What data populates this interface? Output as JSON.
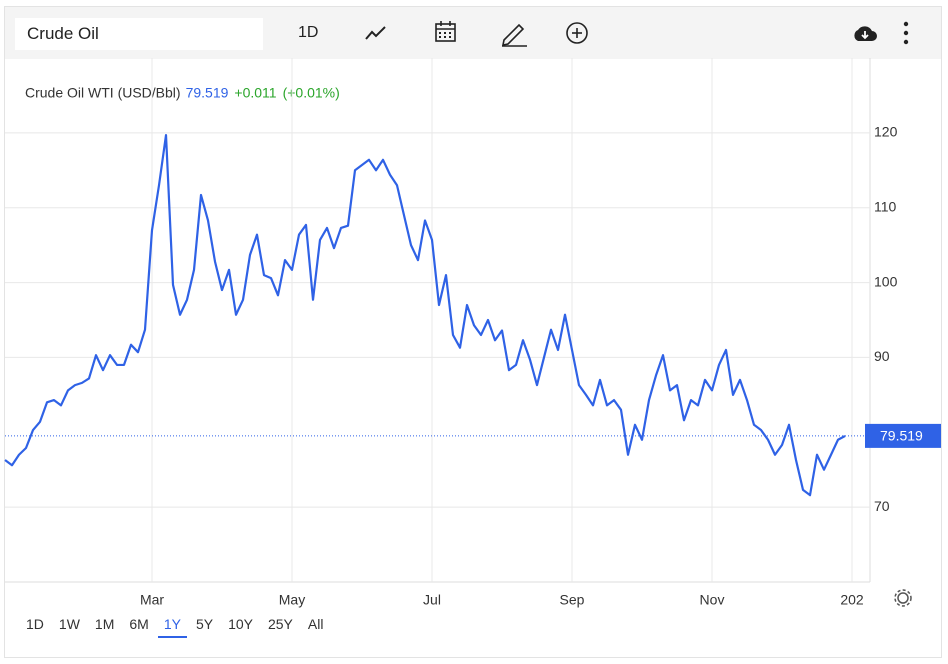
{
  "toolbar": {
    "symbol": "Crude Oil",
    "interval": "1D"
  },
  "chart_data": {
    "type": "line",
    "change": "+0.011",
    "change_percent": "(+0.01%)",
    "last_price": 79.519,
    "categories": [
      null,
      null,
      null,
      null,
      null,
      null,
      null,
      null,
      null,
      null,
      null,
      null,
      null,
      null,
      null,
      null,
      null,
      null,
      null,
      null,
      null,
      "Mar",
      null,
      null,
      null,
      null,
      null,
      null,
      null,
      null,
      null,
      null,
      null,
      null,
      null,
      null,
      null,
      null,
      null,
      null,
      null,
      "May",
      null,
      null,
      null,
      null,
      null,
      null,
      null,
      null,
      null,
      null,
      null,
      null,
      null,
      null,
      null,
      null,
      null,
      null,
      null,
      "Jul",
      null,
      null,
      null,
      null,
      null,
      null,
      null,
      null,
      null,
      null,
      null,
      null,
      null,
      null,
      null,
      null,
      null,
      null,
      null,
      "Sep",
      null,
      null,
      null,
      null,
      null,
      null,
      null,
      null,
      null,
      null,
      null,
      null,
      null,
      null,
      null,
      null,
      null,
      null,
      null,
      "Nov",
      null,
      null,
      null,
      null,
      null,
      null,
      null,
      null,
      null,
      null,
      null,
      null,
      null,
      null,
      null,
      null,
      null,
      null,
      null,
      "202"
    ],
    "series": [
      {
        "name": "Crude Oil WTI (USD/Bbl)",
        "color": "#2f62e6",
        "values": [
          76.3,
          75.6,
          77,
          77.9,
          80.3,
          81.4,
          84,
          84.3,
          83.6,
          85.6,
          86.3,
          86.6,
          87.2,
          90.3,
          88.3,
          90.3,
          89,
          89,
          91.7,
          90.7,
          93.7,
          107,
          113,
          119.7,
          99.7,
          95.7,
          97.7,
          101.7,
          111.7,
          108.3,
          102.8,
          99,
          101.7,
          95.7,
          97.7,
          103.7,
          106.4,
          101,
          100.6,
          98.3,
          103,
          101.7,
          106.4,
          107.7,
          97.7,
          105.7,
          107.3,
          104.6,
          107.3,
          107.6,
          115,
          115.7,
          116.4,
          115,
          116.4,
          114.4,
          113,
          109,
          105,
          103,
          108.3,
          105.7,
          97,
          101,
          93,
          91.3,
          97,
          94.3,
          93,
          95,
          92.3,
          93.6,
          88.3,
          89,
          92.3,
          89.7,
          86.3,
          90,
          93.7,
          91,
          95.7,
          91,
          86.3,
          85,
          83.6,
          87,
          83.6,
          84.3,
          83,
          77,
          81,
          79,
          84.3,
          87.6,
          90.3,
          85.6,
          86.3,
          81.6,
          84.3,
          83.6,
          87,
          85.6,
          89,
          91,
          85,
          87,
          84.3,
          81,
          80.3,
          79,
          77,
          78.3,
          81,
          76.3,
          72.3,
          71.6,
          77,
          75,
          77,
          79,
          79.5,
          null
        ]
      }
    ],
    "ylim": [
      60,
      130
    ],
    "yticks": [
      70,
      90,
      100,
      110,
      120
    ],
    "grid": true
  },
  "ranges": [
    "1D",
    "1W",
    "1M",
    "6M",
    "1Y",
    "5Y",
    "10Y",
    "25Y",
    "All"
  ],
  "active_range": 4
}
